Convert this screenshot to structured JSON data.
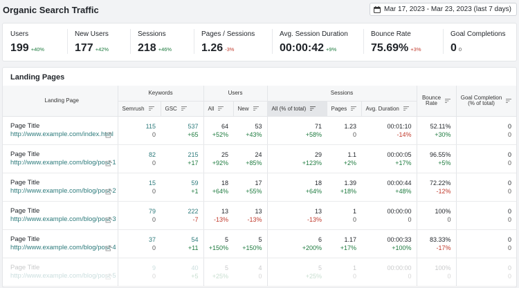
{
  "header": {
    "title": "Organic Search Traffic",
    "date_range": "Mar 17, 2023 - Mar 23, 2023 (last 7 days)"
  },
  "kpis": [
    {
      "label": "Users",
      "value": "199",
      "change": "+40%",
      "trend": "pos"
    },
    {
      "label": "New Users",
      "value": "177",
      "change": "+42%",
      "trend": "pos"
    },
    {
      "label": "Sessions",
      "value": "218",
      "change": "+46%",
      "trend": "pos"
    },
    {
      "label": "Pages / Sessions",
      "value": "1.26",
      "change": "-3%",
      "trend": "neg"
    },
    {
      "label": "Avg. Session Duration",
      "value": "00:00:42",
      "change": "+9%",
      "trend": "pos"
    },
    {
      "label": "Bounce Rate",
      "value": "75.69%",
      "change": "+3%",
      "trend": "neg"
    },
    {
      "label": "Goal Completions",
      "value": "0",
      "change": "0",
      "trend": "zero"
    }
  ],
  "landing": {
    "title": "Landing Pages",
    "headers": {
      "landing_page": "Landing Page",
      "keywords": "Keywords",
      "users": "Users",
      "sessions": "Sessions",
      "bounce_rate_1": "Bounce",
      "bounce_rate_2": "Rate",
      "goal_1": "Goal Completion",
      "goal_2": "(% of total)",
      "semrush": "Semrush",
      "gsc": "GSC",
      "all": "All",
      "new": "New",
      "all_pct": "All (% of total)",
      "pages": "Pages",
      "avg_duration": "Avg. Duration"
    },
    "rows": [
      {
        "title": "Page Title",
        "url": "http://www.example.com/index.html",
        "semrush": "115",
        "semrush_c": "0",
        "gsc": "537",
        "gsc_c": "+65",
        "users": "64",
        "users_c": "+52%",
        "new": "53",
        "new_c": "+43%",
        "sessions": "71",
        "sessions_c": "+58%",
        "pages": "1.23",
        "pages_c": "0",
        "dur": "00:01:10",
        "dur_c": "-14%",
        "bounce": "52.11%",
        "bounce_c": "+30%",
        "goal": "0",
        "goal_c": "0"
      },
      {
        "title": "Page Title",
        "url": "http://www.example.com/blog/post-1",
        "semrush": "82",
        "semrush_c": "0",
        "gsc": "215",
        "gsc_c": "+17",
        "users": "25",
        "users_c": "+92%",
        "new": "24",
        "new_c": "+85%",
        "sessions": "29",
        "sessions_c": "+123%",
        "pages": "1.1",
        "pages_c": "+2%",
        "dur": "00:00:05",
        "dur_c": "+17%",
        "bounce": "96.55%",
        "bounce_c": "+5%",
        "goal": "0",
        "goal_c": "0"
      },
      {
        "title": "Page Title",
        "url": "http://www.example.com/blog/post-2",
        "semrush": "15",
        "semrush_c": "0",
        "gsc": "59",
        "gsc_c": "+1",
        "users": "18",
        "users_c": "+64%",
        "new": "17",
        "new_c": "+55%",
        "sessions": "18",
        "sessions_c": "+64%",
        "pages": "1.39",
        "pages_c": "+18%",
        "dur": "00:00:44",
        "dur_c": "+48%",
        "bounce": "72.22%",
        "bounce_c": "-12%",
        "goal": "0",
        "goal_c": "0"
      },
      {
        "title": "Page Title",
        "url": "http://www.example.com/blog/post-3",
        "semrush": "79",
        "semrush_c": "0",
        "gsc": "222",
        "gsc_c": "-7",
        "users": "13",
        "users_c": "-13%",
        "new": "13",
        "new_c": "-13%",
        "sessions": "13",
        "sessions_c": "-13%",
        "pages": "1",
        "pages_c": "0",
        "dur": "00:00:00",
        "dur_c": "0",
        "bounce": "100%",
        "bounce_c": "0",
        "goal": "0",
        "goal_c": "0"
      },
      {
        "title": "Page Title",
        "url": "http://www.example.com/blog/post-4",
        "semrush": "37",
        "semrush_c": "0",
        "gsc": "54",
        "gsc_c": "+11",
        "users": "5",
        "users_c": "+150%",
        "new": "5",
        "new_c": "+150%",
        "sessions": "6",
        "sessions_c": "+200%",
        "pages": "1.17",
        "pages_c": "+17%",
        "dur": "00:00:33",
        "dur_c": "+100%",
        "bounce": "83.33%",
        "bounce_c": "-17%",
        "goal": "0",
        "goal_c": "0"
      },
      {
        "title": "Page Title",
        "url": "http://www.example.com/blog/post-5",
        "semrush": "9",
        "semrush_c": "0",
        "gsc": "40",
        "gsc_c": "+5",
        "users": "5",
        "users_c": "+25%",
        "new": "4",
        "new_c": "0",
        "sessions": "5",
        "sessions_c": "+25%",
        "pages": "1",
        "pages_c": "0",
        "dur": "00:00:00",
        "dur_c": "0",
        "bounce": "100%",
        "bounce_c": "0",
        "goal": "0",
        "goal_c": "0"
      }
    ]
  }
}
